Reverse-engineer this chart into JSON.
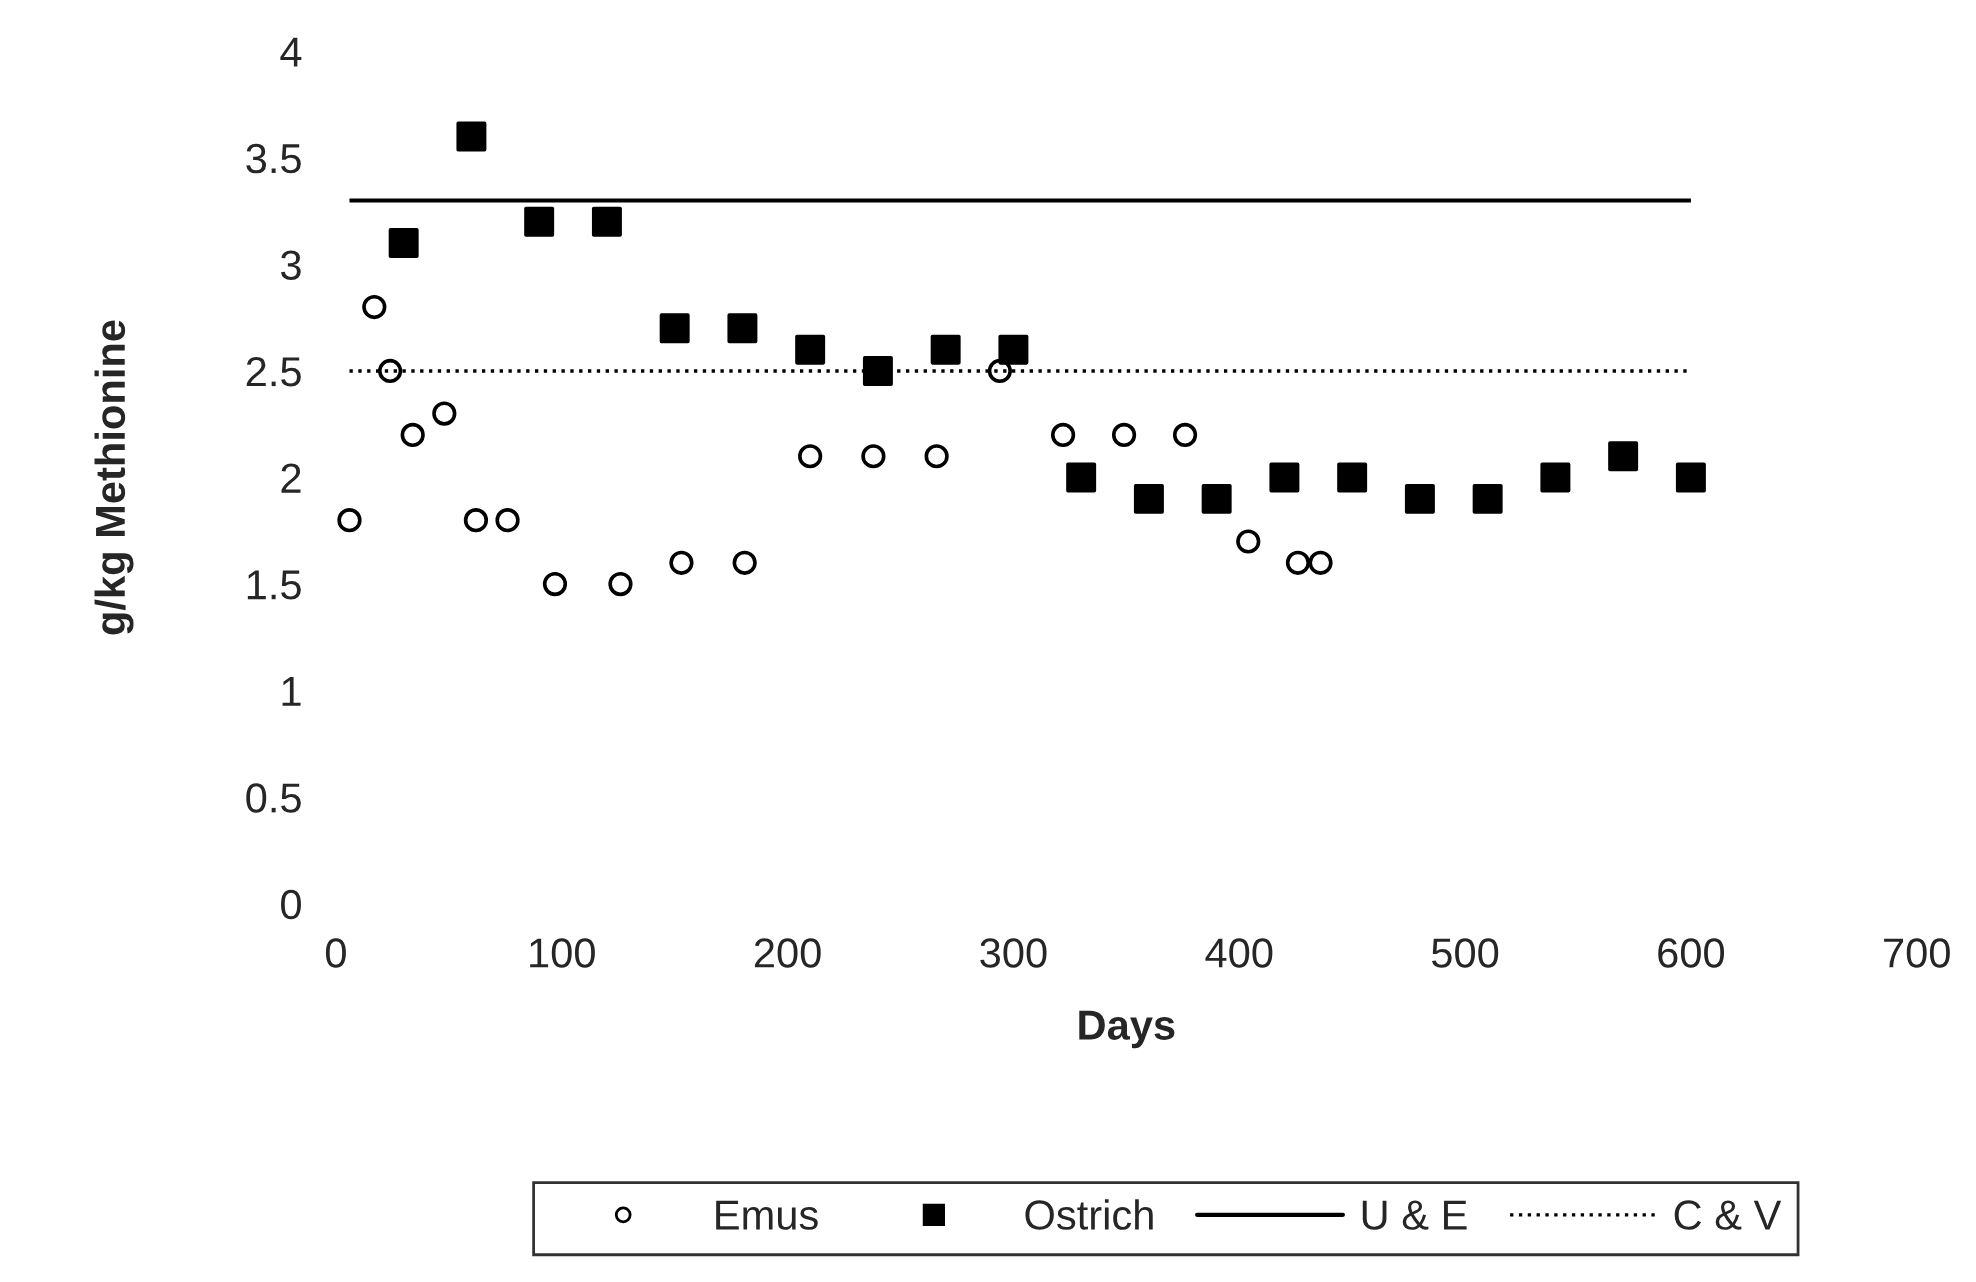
{
  "chart_data": {
    "type": "scatter",
    "xlabel": "Days",
    "ylabel": "g/kg Methionine",
    "xlim": [
      0,
      700
    ],
    "xticks": [
      0,
      100,
      200,
      300,
      400,
      500,
      600,
      700
    ],
    "ylim": [
      0,
      4
    ],
    "yticks": [
      0,
      0.5,
      1,
      1.5,
      2,
      2.5,
      3,
      3.5,
      4
    ],
    "grid": false,
    "legend": "bottom",
    "series": [
      {
        "name": "Emus",
        "color": "#000000",
        "marker": "circle",
        "x": [
          6,
          17,
          24,
          34,
          48,
          62,
          76,
          97,
          126,
          153,
          181,
          210,
          238,
          266,
          294,
          322,
          349,
          376,
          404,
          426,
          436
        ],
        "values": [
          1.8,
          2.8,
          2.5,
          2.2,
          2.3,
          1.8,
          1.8,
          1.5,
          1.5,
          1.6,
          1.6,
          2.1,
          2.1,
          2.1,
          2.5,
          2.2,
          2.2,
          2.2,
          1.7,
          1.6,
          1.6
        ]
      },
      {
        "name": "Ostrich",
        "color": "#000000",
        "marker": "square",
        "x": [
          30,
          60,
          90,
          120,
          150,
          180,
          210,
          240,
          270,
          300,
          330,
          360,
          390,
          420,
          450,
          480,
          510,
          540,
          570,
          600
        ],
        "values": [
          3.1,
          3.6,
          3.2,
          3.2,
          2.7,
          2.7,
          2.6,
          2.5,
          2.6,
          2.6,
          2.0,
          1.9,
          1.9,
          2.0,
          2.0,
          1.9,
          1.9,
          2.0,
          2.1,
          2.0
        ]
      }
    ],
    "ref_lines": [
      {
        "axis": "y",
        "value": 3.3,
        "label": "U & E",
        "color": "#000000",
        "line_style": "solid"
      },
      {
        "axis": "y",
        "value": 2.5,
        "label": "C & V",
        "color": "#000000",
        "line_style": "dotted"
      }
    ]
  }
}
